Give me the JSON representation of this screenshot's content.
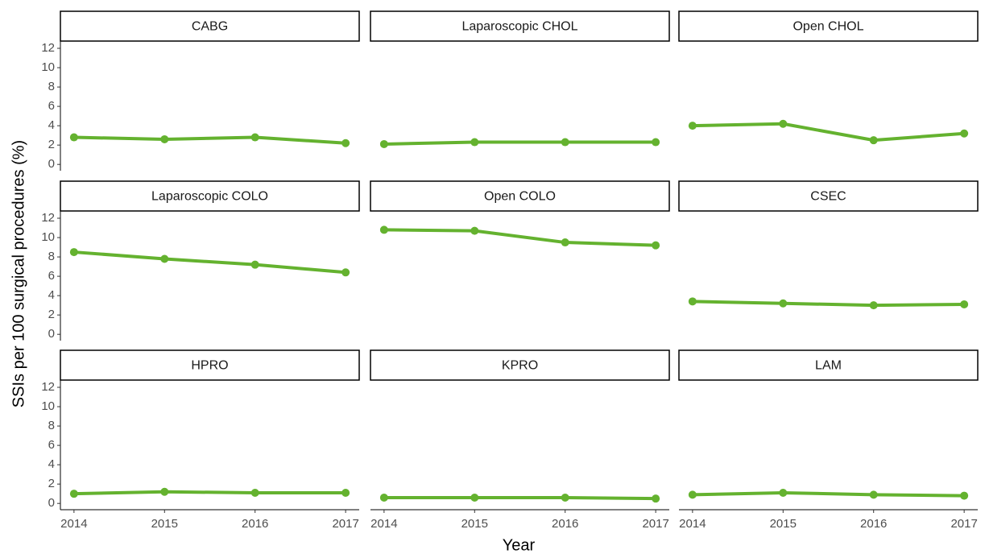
{
  "chart_data": {
    "type": "line",
    "xlabel": "Year",
    "ylabel": "SSIs per 100 surgical procedures (%)",
    "x": [
      2014,
      2015,
      2016,
      2017
    ],
    "xlim": [
      2013.85,
      2017.15
    ],
    "xticks": [
      2014,
      2015,
      2016,
      2017
    ],
    "ylim": [
      -0.65,
      12.75
    ],
    "yticks": [
      0,
      2,
      4,
      6,
      8,
      10,
      12
    ],
    "color": "#64b22f",
    "panels": [
      {
        "title": "CABG",
        "values": [
          2.8,
          2.6,
          2.8,
          2.2
        ]
      },
      {
        "title": "Laparoscopic CHOL",
        "values": [
          2.1,
          2.3,
          2.3,
          2.3
        ]
      },
      {
        "title": "Open CHOL",
        "values": [
          4.0,
          4.2,
          2.5,
          3.2
        ]
      },
      {
        "title": "Laparoscopic COLO",
        "values": [
          8.5,
          7.8,
          7.2,
          6.4
        ]
      },
      {
        "title": "Open COLO",
        "values": [
          10.8,
          10.7,
          9.5,
          9.2
        ]
      },
      {
        "title": "CSEC",
        "values": [
          3.4,
          3.2,
          3.0,
          3.1
        ]
      },
      {
        "title": "HPRO",
        "values": [
          1.0,
          1.2,
          1.1,
          1.1
        ]
      },
      {
        "title": "KPRO",
        "values": [
          0.6,
          0.6,
          0.6,
          0.5
        ]
      },
      {
        "title": "LAM",
        "values": [
          0.9,
          1.1,
          0.9,
          0.8
        ]
      }
    ]
  }
}
